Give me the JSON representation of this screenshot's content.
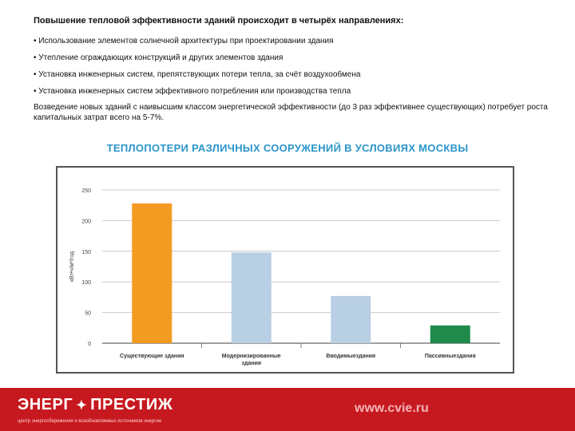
{
  "text": {
    "heading": "Повышение тепловой эффективности зданий происходит в четырёх направлениях:",
    "bullets": [
      "• Использование элементов солнечной архитектуры при проектировании здания",
      "• Утепление ограждающих конструкций и других элементов здания",
      "• Установка инженерных систем, препятствующих потери тепла, за счёт воздухообмена",
      "• Установка инженерных систем эффективного потребления или производства тепла"
    ],
    "paragraph": "Возведение новых зданий с наивысшим классом энергетической эффективности (до 3 раз эффективнее существующих) потребует роста капитальных затрат всего на 5-7%."
  },
  "chart_data": {
    "type": "bar",
    "title": "ТЕПЛОПОТЕРИ РАЗЛИЧНЫХ СООРУЖЕНИЙ В УСЛОВИЯХ МОСКВЫ",
    "ylabel": "кВт•ч/м²/год",
    "ylim": [
      0,
      250
    ],
    "yticks": [
      0,
      50,
      100,
      150,
      200,
      250
    ],
    "grid": true,
    "categories": [
      "Существующие здания",
      "Модернизированные здания",
      "Вводимыездания",
      "Пассивныездания"
    ],
    "values": [
      228,
      148,
      77,
      29
    ],
    "colors": [
      "#f39a23",
      "#b8cfe4",
      "#b8cfe4",
      "#1f8a4c"
    ]
  },
  "footer": {
    "logo_left": "ЭНЕРГ",
    "logo_right": "ПРЕСТИЖ",
    "logo_icon": "compass-star-icon",
    "tagline": "центр энергосбережения и возобновляемых источников энергии",
    "site": "www.cvie.ru"
  }
}
